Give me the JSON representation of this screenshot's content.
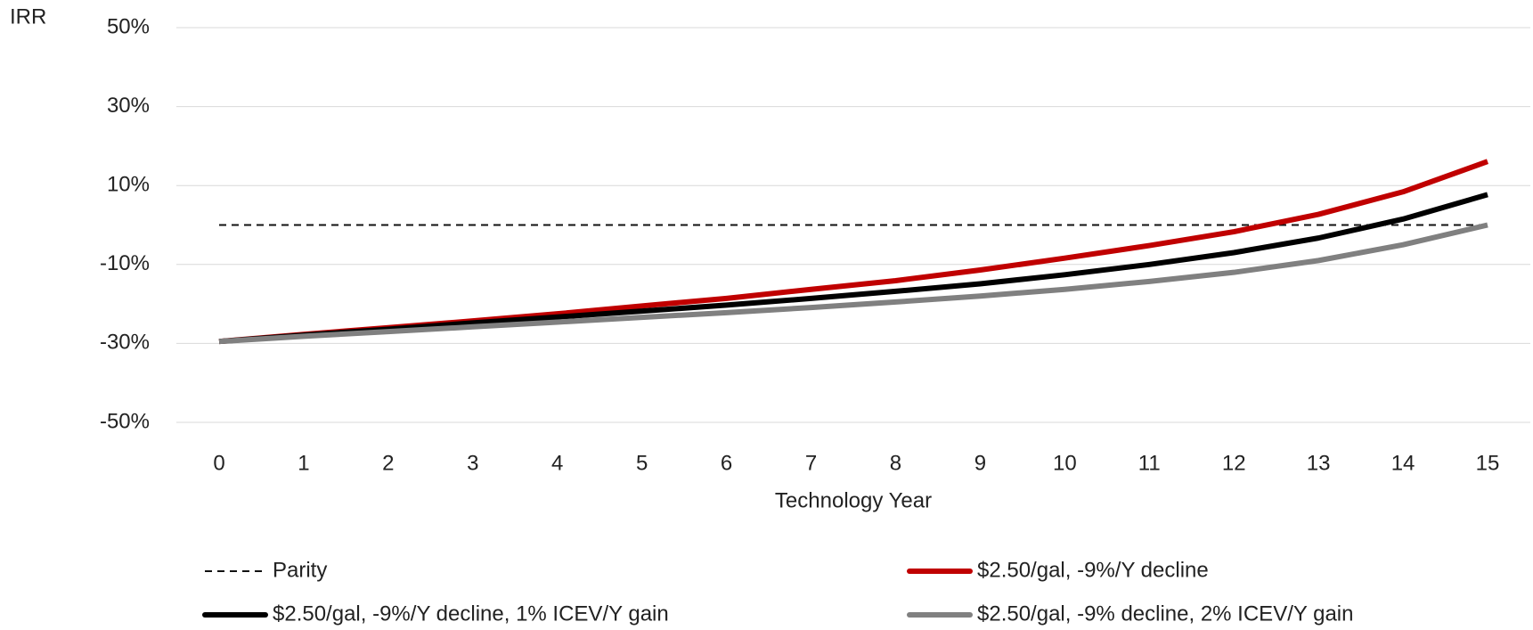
{
  "chart_data": {
    "type": "line",
    "y_label": "IRR",
    "x_label": "Technology Year",
    "categories": [
      "0",
      "1",
      "2",
      "3",
      "4",
      "5",
      "6",
      "7",
      "8",
      "9",
      "10",
      "11",
      "12",
      "13",
      "14",
      "15"
    ],
    "series": [
      {
        "name": "Parity",
        "color": "#111111",
        "dash": true,
        "values": [
          0,
          0,
          0,
          0,
          0,
          0,
          0,
          0,
          0,
          0,
          0,
          0,
          0,
          0,
          0,
          0
        ]
      },
      {
        "name": "$2.50/gal, -9%/Y decline",
        "color": "#c00000",
        "values": [
          -29.5,
          -27.7,
          -26,
          -24.3,
          -22.5,
          -20.5,
          -18.6,
          -16.3,
          -14.1,
          -11.4,
          -8.4,
          -5.2,
          -1.7,
          2.7,
          8.4,
          16.1
        ]
      },
      {
        "name": "$2.50/gal, -9%/Y decline, 1% ICEV/Y gain",
        "color": "#000000",
        "values": [
          -29.5,
          -27.9,
          -26.4,
          -24.8,
          -23.3,
          -21.8,
          -20.3,
          -18.6,
          -16.8,
          -14.9,
          -12.6,
          -10,
          -7,
          -3.3,
          1.5,
          7.7
        ]
      },
      {
        "name": "$2.50/gal, -9% decline, 2% ICEV/Y gain",
        "color": "#808080",
        "values": [
          -29.5,
          -28.2,
          -27,
          -25.8,
          -24.6,
          -23.4,
          -22.2,
          -20.9,
          -19.5,
          -18,
          -16.3,
          -14.3,
          -12,
          -9,
          -5,
          0
        ]
      }
    ],
    "ylim": [
      -50,
      50
    ],
    "yticks": [
      {
        "value": -50,
        "label": "-50%"
      },
      {
        "value": -30,
        "label": "-30%"
      },
      {
        "value": -10,
        "label": "-10%"
      },
      {
        "value": 10,
        "label": "10%"
      },
      {
        "value": 30,
        "label": "30%"
      },
      {
        "value": 50,
        "label": "50%"
      }
    ],
    "grid": true,
    "legend": "bottom"
  }
}
